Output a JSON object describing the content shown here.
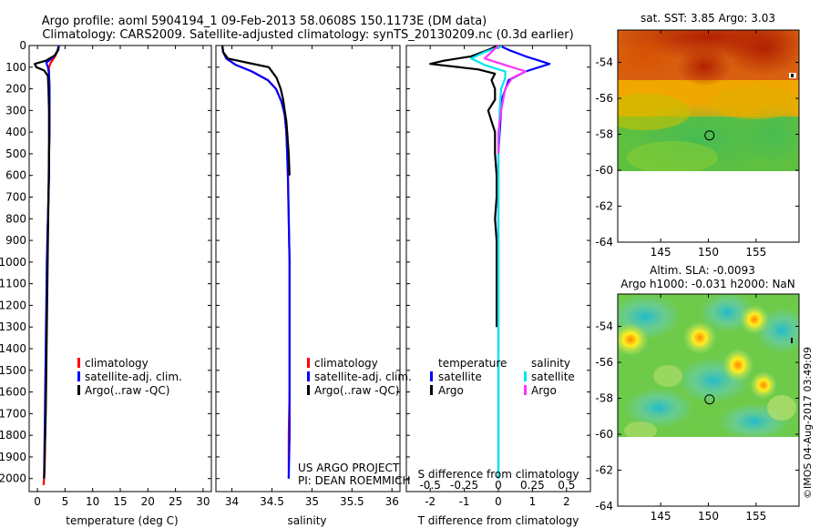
{
  "title_line1": "Argo profile: aoml 5904194_1 09-Feb-2013 58.0608S 150.1173E (DM data)",
  "title_line2": "Climatology: CARS2009. Satellite-adjusted climatology: synTS_20130209.nc (0.3d earlier)",
  "credit": "©IMOS 04-Aug-2017 03:49:09",
  "project_line1": "US ARGO PROJECT",
  "project_line2": "PI: DEAN ROEMMICH",
  "colors": {
    "climatology": "#ff0000",
    "satellite": "#0000ff",
    "argo": "#000000",
    "sat_salinity": "#00e5ee",
    "argo_salinity": "#ff33ff"
  },
  "chart_data": [
    {
      "id": "temperature",
      "type": "line",
      "xlabel": "temperature (deg C)",
      "ylabel": "",
      "xlim": [
        -1.5,
        31.5
      ],
      "ylim": [
        2060,
        0
      ],
      "xticks": [
        0,
        5,
        10,
        15,
        20,
        25,
        30
      ],
      "yticks": [
        0,
        100,
        200,
        300,
        400,
        500,
        600,
        700,
        800,
        900,
        1000,
        1100,
        1200,
        1300,
        1400,
        1500,
        1600,
        1700,
        1800,
        1900,
        2000
      ],
      "legend": [
        "climatology",
        "satellite-adj. clim.",
        "Argo(..raw -QC)"
      ],
      "series": [
        {
          "name": "climatology",
          "color": "#ff0000",
          "x": [
            3.9,
            3.7,
            3.2,
            2.4,
            2.1,
            2.1,
            2.2,
            2.2,
            2.2,
            2.1,
            2.1,
            2.0,
            1.9,
            1.8,
            1.8,
            1.7,
            1.7,
            1.6,
            1.5,
            1.4,
            1.3,
            1.2,
            1.1
          ],
          "y": [
            0,
            20,
            50,
            80,
            100,
            130,
            200,
            300,
            400,
            500,
            600,
            700,
            800,
            900,
            1000,
            1100,
            1200,
            1400,
            1600,
            1800,
            1950,
            2000,
            2030
          ]
        },
        {
          "name": "satellite-adj. clim.",
          "color": "#0000ff",
          "x": [
            3.9,
            3.8,
            3.0,
            1.6,
            1.9,
            2.1,
            2.2,
            2.2,
            2.2,
            2.1,
            2.1,
            2.0,
            1.9,
            1.8,
            1.7,
            1.6,
            1.5,
            1.4,
            1.3,
            1.2
          ],
          "y": [
            0,
            20,
            50,
            80,
            100,
            130,
            200,
            300,
            400,
            500,
            600,
            700,
            800,
            900,
            1000,
            1200,
            1400,
            1600,
            1800,
            2000
          ]
        },
        {
          "name": "Argo(..raw -QC)",
          "color": "#000000",
          "x": [
            3.8,
            3.7,
            3.2,
            1.5,
            -0.5,
            -0.2,
            1.2,
            1.9,
            2.0,
            2.1,
            2.1,
            2.1,
            2.0,
            1.9,
            1.8,
            1.7,
            1.6,
            1.5,
            1.4,
            1.3,
            1.2
          ],
          "y": [
            5,
            20,
            45,
            70,
            85,
            100,
            115,
            140,
            200,
            300,
            400,
            500,
            700,
            900,
            1100,
            1300,
            1500,
            1700,
            1800,
            1900,
            2000
          ]
        }
      ]
    },
    {
      "id": "salinity",
      "type": "line",
      "xlabel": "salinity",
      "ylabel": "",
      "xlim": [
        33.8,
        36.1
      ],
      "ylim": [
        2060,
        0
      ],
      "xticks": [
        34,
        34.5,
        35,
        35.5,
        36
      ],
      "legend": [
        "climatology",
        "satellite-adj. clim.",
        "Argo(..raw -QC)"
      ],
      "series": [
        {
          "name": "climatology",
          "color": "#ff0000",
          "x": [
            33.88,
            33.89,
            33.93,
            34.05,
            34.25,
            34.45,
            34.55,
            34.62,
            34.66,
            34.68,
            34.69,
            34.7,
            34.71,
            34.72,
            34.72,
            34.72,
            34.72,
            34.71,
            34.71
          ],
          "y": [
            0,
            30,
            60,
            90,
            120,
            160,
            200,
            260,
            320,
            400,
            500,
            600,
            800,
            1000,
            1200,
            1400,
            1600,
            1800,
            2000
          ]
        },
        {
          "name": "satellite-adj. clim.",
          "color": "#0000ff",
          "x": [
            33.88,
            33.89,
            33.93,
            34.05,
            34.25,
            34.45,
            34.55,
            34.62,
            34.66,
            34.68,
            34.69,
            34.7,
            34.71,
            34.72,
            34.72,
            34.72,
            34.71
          ],
          "y": [
            0,
            30,
            60,
            90,
            120,
            160,
            200,
            260,
            320,
            400,
            500,
            600,
            800,
            1000,
            1400,
            1800,
            2000
          ]
        },
        {
          "name": "Argo(..raw -QC)",
          "color": "#000000",
          "x": [
            33.88,
            33.89,
            33.95,
            34.2,
            34.46,
            34.56,
            34.61,
            34.64,
            34.66,
            34.68,
            34.69,
            34.7,
            34.71,
            34.72
          ],
          "y": [
            0,
            30,
            60,
            80,
            100,
            150,
            200,
            250,
            300,
            350,
            400,
            450,
            500,
            600
          ]
        }
      ]
    },
    {
      "id": "differences",
      "type": "line",
      "xlabel": "T difference from climatology",
      "x2label": "S difference from climatology",
      "xlim": [
        -2.7,
        2.7
      ],
      "x2lim": [
        -0.675,
        0.675
      ],
      "ylim": [
        2060,
        0
      ],
      "xticks": [
        -2,
        -1,
        0,
        1,
        2
      ],
      "x2ticks": [
        -0.5,
        -0.25,
        0,
        0.25,
        0.5
      ],
      "x2ticklabels": [
        "-0.5",
        "-0.25",
        "0",
        "0.25",
        "0.5"
      ],
      "legend": {
        "col1_title": "temperature",
        "col2_title": "salinity",
        "entries": [
          "satellite",
          "Argo",
          "satellite",
          "Argo"
        ]
      },
      "series": [
        {
          "name": "satellite",
          "group": "temperature",
          "color": "#0000ff",
          "x": [
            0.1,
            0.3,
            0.8,
            1.5,
            0.8,
            0.3,
            0.1,
            0.0,
            0.0,
            0.0,
            0.0
          ],
          "y": [
            5,
            20,
            50,
            85,
            120,
            160,
            250,
            500,
            1000,
            1500,
            2000
          ]
        },
        {
          "name": "Argo",
          "group": "temperature",
          "color": "#000000",
          "x": [
            0.0,
            -0.3,
            -0.8,
            -1.6,
            -2.0,
            -0.6,
            -0.1,
            -0.2,
            -0.1,
            -0.1,
            -0.3,
            -0.2,
            -0.1,
            -0.1,
            -0.05,
            -0.05,
            -0.1,
            -0.05,
            -0.05,
            -0.05,
            -0.05,
            -0.05
          ],
          "y": [
            0,
            20,
            50,
            70,
            85,
            110,
            130,
            160,
            200,
            250,
            300,
            350,
            400,
            500,
            600,
            700,
            800,
            900,
            1000,
            1100,
            1200,
            1300
          ]
        },
        {
          "name": "satellite",
          "group": "salinity",
          "color": "#00e5ee",
          "x": [
            0.02,
            -0.1,
            -0.2,
            -0.1,
            0.05,
            0.05,
            0.02,
            0.01,
            0.0,
            0.0,
            0.0,
            0.0
          ],
          "y": [
            5,
            30,
            60,
            90,
            120,
            150,
            200,
            300,
            500,
            1000,
            1500,
            2000
          ]
        },
        {
          "name": "Argo",
          "group": "salinity",
          "color": "#ff33ff",
          "x": [
            0.0,
            -0.05,
            -0.1,
            0.05,
            0.2,
            0.1,
            0.05,
            0.02,
            0.0,
            0.0
          ],
          "y": [
            0,
            30,
            60,
            90,
            120,
            150,
            200,
            300,
            400,
            500
          ]
        }
      ]
    },
    {
      "id": "sst_map",
      "type": "heatmap",
      "title": "sat. SST: 3.85 Argo: 3.03",
      "xlim": [
        140.5,
        159.5
      ],
      "ylim": [
        -64,
        -52.2
      ],
      "xticks": [
        145,
        150,
        155
      ],
      "yticks": [
        -54,
        -56,
        -58,
        -60,
        -62,
        -64
      ],
      "marker": {
        "lon": 150.1173,
        "lat": -58.0608
      }
    },
    {
      "id": "sla_map",
      "type": "heatmap",
      "title_line1": "Altim. SLA: -0.0093",
      "title_line2": "Argo h1000: -0.031 h2000: NaN",
      "xlim": [
        140.5,
        159.5
      ],
      "ylim": [
        -64,
        -52.2
      ],
      "xticks": [
        145,
        150,
        155
      ],
      "yticks": [
        -54,
        -56,
        -58,
        -60,
        -62,
        -64
      ],
      "marker": {
        "lon": 150.1173,
        "lat": -58.0608
      }
    }
  ]
}
